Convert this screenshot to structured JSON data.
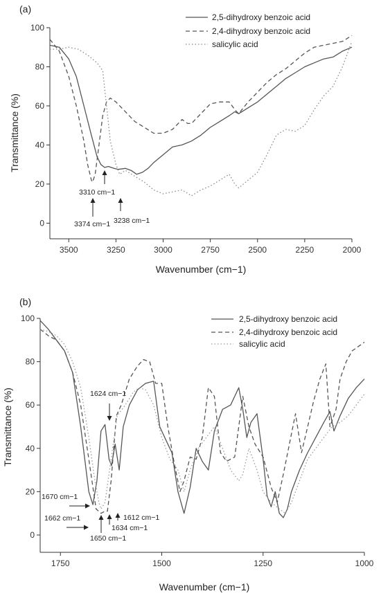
{
  "chart_data": [
    {
      "type": "line",
      "panel_label": "(a)",
      "xlabel": "Wavenumber (cm−1)",
      "ylabel": "Transmittance (%)",
      "xlim": [
        3600,
        2000
      ],
      "ylim": [
        -8,
        100
      ],
      "x_ticks": [
        3500,
        3250,
        3000,
        2750,
        2500,
        2250,
        2000
      ],
      "y_ticks": [
        0,
        20,
        40,
        60,
        80,
        100
      ],
      "legend_position": "top-right",
      "series": [
        {
          "name": "2,5-dihydroxy benzoic acid",
          "style": "solid",
          "color": "#555555",
          "x": [
            3600,
            3550,
            3500,
            3460,
            3420,
            3380,
            3350,
            3330,
            3310,
            3290,
            3260,
            3238,
            3200,
            3170,
            3140,
            3110,
            3080,
            3050,
            3000,
            2950,
            2900,
            2850,
            2800,
            2750,
            2700,
            2650,
            2620,
            2600,
            2550,
            2500,
            2450,
            2400,
            2350,
            2300,
            2250,
            2200,
            2150,
            2100,
            2050,
            2000
          ],
          "y": [
            91,
            90,
            84,
            75,
            60,
            45,
            34,
            30,
            28.5,
            29,
            28,
            27.5,
            28,
            27,
            25,
            26,
            28,
            31,
            35,
            39,
            40,
            42,
            45,
            49,
            52,
            55,
            57,
            56,
            59,
            62,
            66,
            70,
            74,
            77,
            80,
            82,
            84,
            85,
            88,
            90
          ]
        },
        {
          "name": "2,4-dihydroxy benzoic acid",
          "style": "dashed",
          "color": "#555555",
          "x": [
            3600,
            3550,
            3500,
            3460,
            3420,
            3400,
            3380,
            3374,
            3360,
            3340,
            3320,
            3300,
            3280,
            3250,
            3200,
            3150,
            3100,
            3050,
            3000,
            2950,
            2900,
            2870,
            2850,
            2800,
            2750,
            2700,
            2650,
            2620,
            2600,
            2550,
            2500,
            2450,
            2400,
            2350,
            2300,
            2250,
            2200,
            2150,
            2100,
            2050,
            2000
          ],
          "y": [
            94,
            88,
            75,
            60,
            42,
            30,
            22,
            21,
            25,
            40,
            55,
            62,
            64,
            62,
            57,
            52,
            49,
            46,
            46,
            48,
            53,
            51,
            51,
            56,
            61,
            62,
            62,
            58,
            56,
            62,
            67,
            72,
            76,
            79,
            83,
            87,
            90,
            91,
            92,
            93,
            96
          ]
        },
        {
          "name": "salicylic acid",
          "style": "dotted",
          "color": "#888888",
          "x": [
            3600,
            3550,
            3500,
            3450,
            3400,
            3350,
            3320,
            3300,
            3280,
            3250,
            3230,
            3200,
            3150,
            3100,
            3050,
            3000,
            2950,
            2900,
            2850,
            2800,
            2750,
            2700,
            2650,
            2620,
            2600,
            2550,
            2500,
            2450,
            2400,
            2350,
            2300,
            2250,
            2200,
            2150,
            2100,
            2050,
            2000
          ],
          "y": [
            89,
            89,
            90,
            89,
            86,
            82,
            78,
            60,
            42,
            30,
            25,
            27,
            24,
            21,
            17,
            15,
            16,
            17,
            14,
            17,
            19,
            22,
            25,
            20,
            18,
            22,
            26,
            35,
            45,
            48,
            47,
            50,
            58,
            65,
            70,
            80,
            93
          ]
        }
      ],
      "annotations": [
        {
          "text": "3310 cm−1",
          "x": 3310
        },
        {
          "text": "3374 cm−1",
          "x": 3374
        },
        {
          "text": "3238 cm−1",
          "x": 3238
        }
      ]
    },
    {
      "type": "line",
      "panel_label": "(b)",
      "xlabel": "Wavenumber (cm−1)",
      "ylabel": "Transmittance (%)",
      "xlim": [
        1800,
        1000
      ],
      "ylim": [
        -8,
        100
      ],
      "x_ticks": [
        1750,
        1500,
        1250,
        1000
      ],
      "y_ticks": [
        0,
        20,
        40,
        60,
        80,
        100
      ],
      "legend_position": "top-right",
      "series": [
        {
          "name": "2,5-dihydroxy benzoic acid",
          "style": "solid",
          "color": "#555555",
          "x": [
            1800,
            1780,
            1760,
            1740,
            1720,
            1700,
            1680,
            1670,
            1660,
            1650,
            1640,
            1630,
            1624,
            1615,
            1605,
            1595,
            1580,
            1560,
            1540,
            1520,
            1505,
            1490,
            1475,
            1460,
            1445,
            1430,
            1415,
            1400,
            1385,
            1370,
            1350,
            1330,
            1310,
            1300,
            1290,
            1280,
            1265,
            1250,
            1240,
            1230,
            1220,
            1210,
            1200,
            1190,
            1180,
            1160,
            1140,
            1120,
            1100,
            1085,
            1075,
            1060,
            1040,
            1020,
            1000
          ],
          "y": [
            99,
            95,
            90,
            85,
            75,
            50,
            20,
            14,
            25,
            48,
            51,
            35,
            32,
            42,
            30,
            50,
            60,
            67,
            70,
            71,
            50,
            44,
            38,
            20,
            10,
            22,
            40,
            34,
            30,
            48,
            58,
            60,
            68,
            58,
            45,
            52,
            56,
            35,
            18,
            13,
            20,
            10,
            8,
            12,
            20,
            30,
            38,
            45,
            52,
            57,
            48,
            55,
            63,
            68,
            72
          ]
        },
        {
          "name": "2,4-dihydroxy benzoic acid",
          "style": "dashed",
          "color": "#555555",
          "x": [
            1800,
            1780,
            1760,
            1740,
            1720,
            1700,
            1680,
            1662,
            1650,
            1640,
            1634,
            1625,
            1612,
            1600,
            1580,
            1560,
            1545,
            1530,
            1515,
            1500,
            1485,
            1470,
            1455,
            1445,
            1430,
            1415,
            1400,
            1385,
            1370,
            1355,
            1340,
            1320,
            1300,
            1285,
            1270,
            1250,
            1230,
            1215,
            1200,
            1185,
            1170,
            1155,
            1140,
            1125,
            1110,
            1095,
            1085,
            1070,
            1060,
            1045,
            1030,
            1015,
            1000
          ],
          "y": [
            95,
            92,
            90,
            85,
            75,
            60,
            35,
            12,
            10,
            11,
            11,
            25,
            55,
            60,
            72,
            78,
            81,
            80,
            70,
            70,
            50,
            34,
            20,
            25,
            36,
            35,
            45,
            68,
            64,
            38,
            34,
            36,
            64,
            50,
            42,
            36,
            22,
            15,
            28,
            42,
            56,
            38,
            50,
            62,
            72,
            79,
            50,
            58,
            72,
            80,
            85,
            87,
            89
          ]
        },
        {
          "name": "salicylic acid",
          "style": "dotted",
          "color": "#999999",
          "x": [
            1800,
            1780,
            1760,
            1740,
            1720,
            1700,
            1680,
            1665,
            1655,
            1650,
            1640,
            1625,
            1610,
            1590,
            1570,
            1555,
            1540,
            1520,
            1500,
            1480,
            1460,
            1445,
            1430,
            1410,
            1390,
            1370,
            1350,
            1330,
            1310,
            1300,
            1285,
            1265,
            1250,
            1230,
            1210,
            1195,
            1180,
            1160,
            1140,
            1120,
            1100,
            1080,
            1060,
            1040,
            1020,
            1000
          ],
          "y": [
            95,
            94,
            92,
            88,
            80,
            68,
            45,
            25,
            15,
            12,
            15,
            35,
            55,
            60,
            66,
            68,
            67,
            60,
            45,
            35,
            30,
            20,
            30,
            40,
            45,
            50,
            40,
            30,
            25,
            28,
            40,
            30,
            20,
            15,
            12,
            10,
            15,
            25,
            35,
            40,
            45,
            50,
            52,
            55,
            60,
            65
          ]
        }
      ],
      "annotations": [
        {
          "text": "1624 cm−1",
          "x": 1624
        },
        {
          "text": "1670 cm−1",
          "x": 1670
        },
        {
          "text": "1662 cm−1",
          "x": 1662
        },
        {
          "text": "1650 cm−1",
          "x": 1650
        },
        {
          "text": "1634 cm−1",
          "x": 1634
        },
        {
          "text": "1612 cm−1",
          "x": 1612
        }
      ]
    }
  ]
}
